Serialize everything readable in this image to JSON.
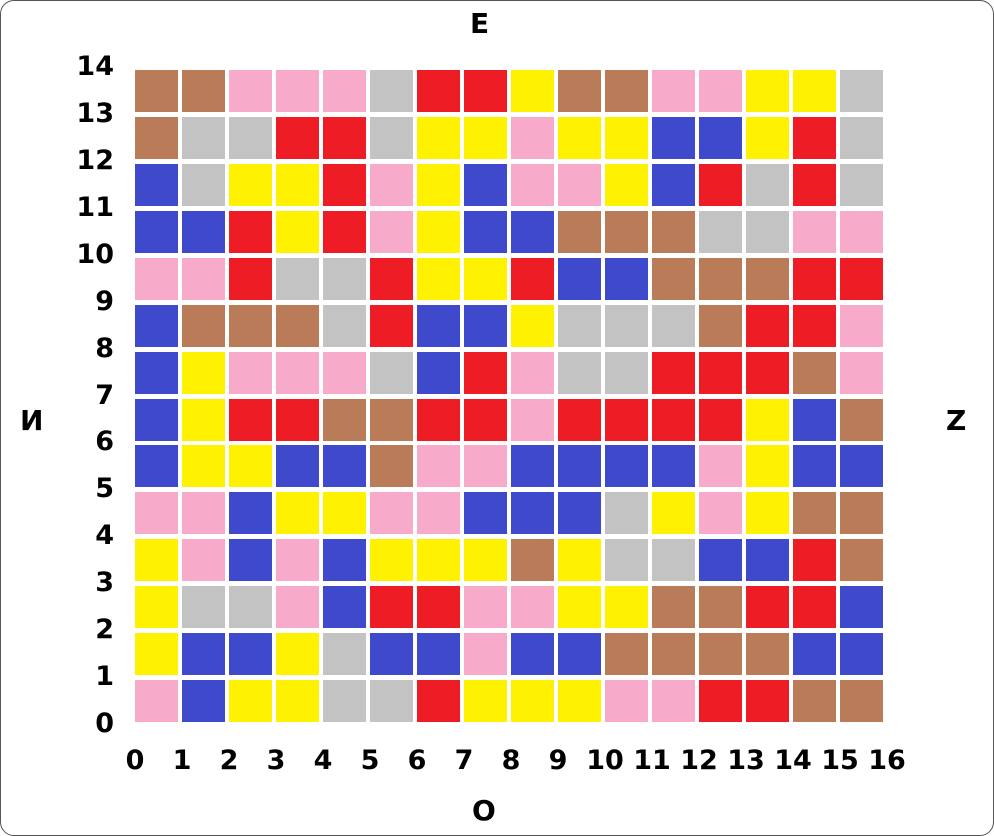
{
  "compass": {
    "north": "E",
    "south": "O",
    "west": "И",
    "east": "Z"
  },
  "x_axis": [
    "0",
    "1",
    "2",
    "3",
    "4",
    "5",
    "6",
    "7",
    "8",
    "9",
    "10",
    "11",
    "12",
    "13",
    "14",
    "15",
    "16"
  ],
  "y_axis": [
    "0",
    "1",
    "2",
    "3",
    "4",
    "5",
    "6",
    "7",
    "8",
    "9",
    "10",
    "11",
    "12",
    "13",
    "14"
  ],
  "colors": {
    "B": "#B97B58",
    "P": "#F8AACA",
    "G": "#C3C3C3",
    "R": "#EE1C25",
    "Y": "#FEF200",
    "U": "#3E49CB"
  },
  "color_names": {
    "B": "brown",
    "P": "pink",
    "G": "gray",
    "R": "red",
    "Y": "yellow",
    "U": "blue"
  },
  "grid_rows_top_to_bottom": [
    "BBPPPGRRYBBPPYYG",
    "BGGRRGYYPYYUUYRG",
    "UGYYRPYUPPYURGRG",
    "UURYRPYUUBBBGGPP",
    "PPRGGRYYRUUBBBRR",
    "UBBBGRUUYGGGBRRP",
    "UYPPPGURPGGRRRBP",
    "UYRRBBRRPRRRRYUB",
    "UYYUUBPPUUUUPYUU",
    "PPUYYPPUUUGYPYBB",
    "YPUPUYYYBYGGUURB",
    "YGGPURRPPYYBBRRU",
    "YUUYGUUPUUBBBBUU",
    "PUYYGGRYYYPPRRBB"
  ]
}
